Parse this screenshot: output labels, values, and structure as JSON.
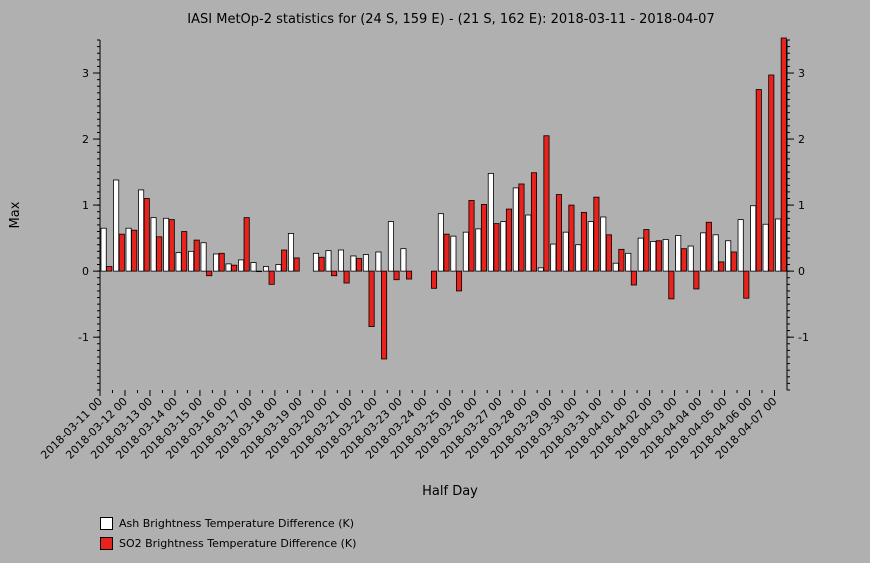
{
  "chart_data": {
    "type": "bar",
    "title": "IASI MetOp-2 statistics for (24 S, 159 E) - (21 S, 162 E): 2018-03-11 - 2018-04-07",
    "xlabel": "Half Day",
    "ylabel": "Max",
    "ylim": [
      -1.8,
      3.5
    ],
    "yticks": [
      -1,
      0,
      1,
      2,
      3
    ],
    "tick_labels": [
      "2018-03-11 00",
      "2018-03-12 00",
      "2018-03-13 00",
      "2018-03-14 00",
      "2018-03-15 00",
      "2018-03-16 00",
      "2018-03-17 00",
      "2018-03-18 00",
      "2018-03-19 00",
      "2018-03-20 00",
      "2018-03-21 00",
      "2018-03-22 00",
      "2018-03-23 00",
      "2018-03-24 00",
      "2018-03-25 00",
      "2018-03-26 00",
      "2018-03-27 00",
      "2018-03-28 00",
      "2018-03-29 00",
      "2018-03-30 00",
      "2018-03-31 00",
      "2018-04-01 00",
      "2018-04-02 00",
      "2018-04-03 00",
      "2018-04-04 00",
      "2018-04-05 00",
      "2018-04-06 00",
      "2018-04-07 00"
    ],
    "series": [
      {
        "name": "Ash Brightness Temperature Difference (K)",
        "color": "#ffffff",
        "values": [
          0.65,
          1.38,
          0.65,
          1.23,
          0.81,
          0.8,
          0.28,
          0.3,
          0.43,
          0.26,
          0.11,
          0.17,
          0.13,
          0.07,
          0.1,
          0.57,
          null,
          0.27,
          0.31,
          0.32,
          0.23,
          0.25,
          0.29,
          0.75,
          0.34,
          null,
          null,
          0.87,
          0.53,
          0.59,
          0.64,
          1.48,
          0.75,
          1.26,
          0.85,
          0.05,
          0.41,
          0.59,
          0.4,
          0.75,
          0.82,
          0.12,
          0.27,
          0.5,
          0.45,
          0.48,
          0.54,
          0.38,
          0.58,
          0.55,
          0.46,
          0.78,
          0.99,
          0.71,
          0.79
        ]
      },
      {
        "name": "SO2 Brightness Temperature Difference (K)",
        "color": "#e8221c",
        "values": [
          0.07,
          0.56,
          0.62,
          1.1,
          0.52,
          0.78,
          0.6,
          0.47,
          -0.07,
          0.27,
          0.09,
          0.81,
          0.0,
          -0.2,
          0.32,
          0.2,
          null,
          0.21,
          -0.07,
          -0.18,
          0.19,
          -0.84,
          -1.33,
          -0.13,
          -0.12,
          null,
          -0.26,
          0.56,
          -0.3,
          1.07,
          1.01,
          0.72,
          0.94,
          1.32,
          1.49,
          2.05,
          1.16,
          1.0,
          0.89,
          1.12,
          0.55,
          0.33,
          -0.21,
          0.63,
          0.46,
          -0.42,
          0.34,
          -0.27,
          0.74,
          0.14,
          0.29,
          -0.41,
          2.75,
          2.97,
          3.53
        ]
      }
    ]
  }
}
